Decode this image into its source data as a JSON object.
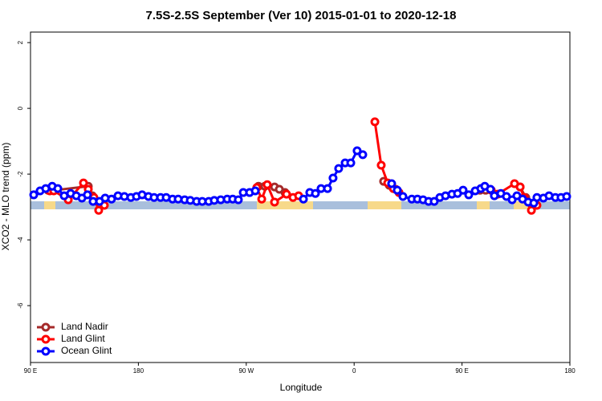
{
  "chart_data": {
    "type": "line",
    "title": "7.5S-2.5S September (Ver 10)   2015-01-01 to 2020-12-18",
    "x_label": "Longitude",
    "y_label": "XCO2 - MLO trend (ppm)",
    "xlim": [
      90,
      540
    ],
    "ylim": [
      -7.73,
      2.32
    ],
    "xticks": [
      {
        "value": 90,
        "label": "90 E"
      },
      180,
      {
        "value": 270,
        "label": "90 W"
      },
      {
        "value": 360,
        "label": "0"
      },
      {
        "value": 450,
        "label": "90 E"
      },
      {
        "value": 540,
        "label": "180"
      }
    ],
    "yticks": [
      2,
      0,
      -2,
      -4,
      -6
    ],
    "legend": "bottom-left",
    "series": [
      {
        "name": "Land Nadir",
        "color": "#a52a2a",
        "x": [
          104.7,
          110.1,
          138.2,
          141.6,
          null,
          280.2,
          285.5,
          293.6,
          297.6,
          302.3,
          null,
          384.6,
          389.3,
          394.7,
          null,
          465.0,
          469.7,
          null,
          498.5,
          503.2
        ],
        "values": [
          -2.49,
          -2.49,
          -2.37,
          -2.66,
          null,
          -2.37,
          -2.37,
          -2.39,
          -2.46,
          -2.56,
          null,
          -2.22,
          -2.34,
          -2.46,
          null,
          -2.49,
          -2.49,
          null,
          -2.39,
          -2.71
        ]
      },
      {
        "name": "Land Glint",
        "color": "#ff0000",
        "x": [
          106.1,
          109.4,
          121.5,
          134.2,
          138.2,
          142.9,
          146.9,
          151.6,
          null,
          278.8,
          282.9,
          287.5,
          293.6,
          303.6,
          309.0,
          313.7,
          null,
          377.3,
          382.6,
          388.0,
          392.7,
          397.4,
          null,
          474.4,
          479.7,
          493.8,
          498.5,
          501.8,
          507.9,
          512.5
        ],
        "values": [
          -2.51,
          -2.51,
          -2.78,
          -2.27,
          -2.46,
          -2.71,
          -3.1,
          -2.95,
          null,
          -2.41,
          -2.76,
          -2.32,
          -2.85,
          -2.61,
          -2.71,
          -2.66,
          null,
          -0.41,
          -1.73,
          -2.27,
          -2.44,
          -2.56,
          null,
          -2.49,
          -2.61,
          -2.29,
          -2.39,
          -2.71,
          -3.1,
          -2.95
        ]
      },
      {
        "name": "Ocean Glint",
        "color": "#0000ff",
        "x": [
          92.7,
          98.0,
          102.7,
          108.1,
          112.8,
          118.1,
          123.5,
          128.2,
          132.9,
          137.5,
          142.2,
          147.6,
          152.3,
          157.6,
          163.0,
          168.3,
          173.7,
          178.4,
          183.1,
          188.4,
          193.1,
          198.5,
          203.2,
          208.5,
          213.2,
          218.6,
          223.3,
          228.6,
          233.3,
          238.7,
          243.3,
          248.7,
          254.1,
          258.7,
          263.4,
          267.5,
          272.8,
          277.5,
          null,
          317.7,
          323.0,
          327.7,
          332.4,
          337.8,
          342.4,
          347.1,
          352.5,
          357.2,
          362.5,
          367.2,
          null,
          391.3,
          396.0,
          400.7,
          408.1,
          412.8,
          417.5,
          422.1,
          426.8,
          431.5,
          436.2,
          441.6,
          446.3,
          450.9,
          455.6,
          461.0,
          465.7,
          469.0,
          473.7,
          477.0,
          482.4,
          487.1,
          491.8,
          495.8,
          500.5,
          505.2,
          509.9,
          512.5,
          517.9,
          522.6,
          527.9,
          532.6,
          537.3
        ],
        "values": [
          -2.63,
          -2.51,
          -2.44,
          -2.37,
          -2.44,
          -2.66,
          -2.59,
          -2.66,
          -2.73,
          -2.63,
          -2.83,
          -2.83,
          -2.73,
          -2.76,
          -2.66,
          -2.68,
          -2.71,
          -2.68,
          -2.63,
          -2.68,
          -2.71,
          -2.71,
          -2.71,
          -2.76,
          -2.76,
          -2.78,
          -2.8,
          -2.83,
          -2.83,
          -2.83,
          -2.8,
          -2.78,
          -2.76,
          -2.76,
          -2.78,
          -2.56,
          -2.56,
          -2.51,
          null,
          -2.76,
          -2.56,
          -2.59,
          -2.44,
          -2.44,
          -2.12,
          -1.83,
          -1.66,
          -1.66,
          -1.29,
          -1.41,
          null,
          -2.29,
          -2.49,
          -2.68,
          -2.76,
          -2.76,
          -2.78,
          -2.83,
          -2.83,
          -2.71,
          -2.66,
          -2.61,
          -2.59,
          -2.49,
          -2.63,
          -2.51,
          -2.44,
          -2.37,
          -2.46,
          -2.66,
          -2.59,
          -2.68,
          -2.78,
          -2.66,
          -2.76,
          -2.85,
          -2.88,
          -2.71,
          -2.73,
          -2.66,
          -2.71,
          -2.71,
          -2.68
        ]
      }
    ]
  }
}
